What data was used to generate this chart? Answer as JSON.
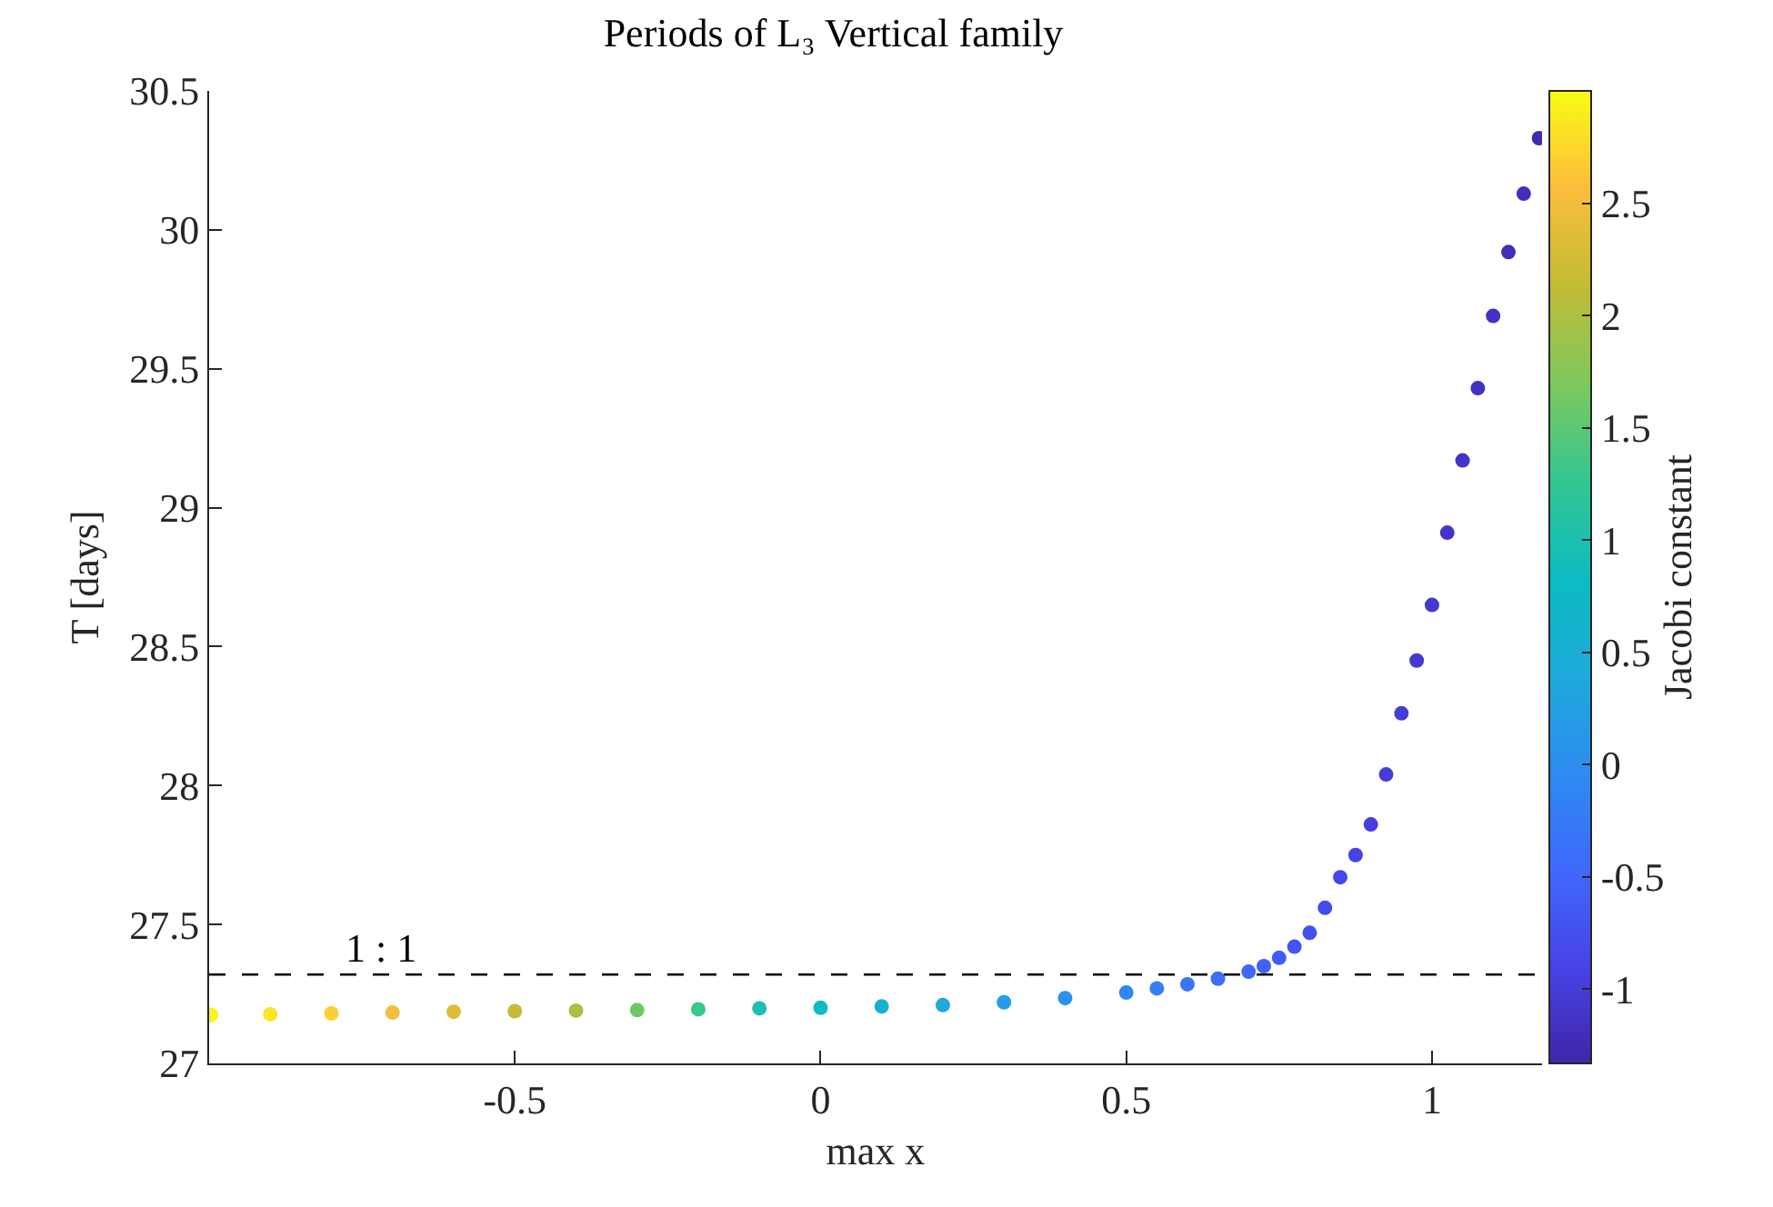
{
  "chart_data": {
    "type": "scatter",
    "title": "Periods of L₃ Vertical family",
    "xlabel": "max x",
    "ylabel": "T [days]",
    "clabel": "Jacobi constant",
    "x": [
      -0.997,
      -0.9,
      -0.8,
      -0.7,
      -0.6,
      -0.5,
      -0.4,
      -0.3,
      -0.2,
      -0.1,
      0,
      0.1,
      0.2,
      0.3,
      0.4,
      0.5,
      0.55,
      0.6,
      0.65,
      0.7,
      0.725,
      0.75,
      0.775,
      0.8,
      0.825,
      0.85,
      0.875,
      0.9,
      0.925,
      0.95,
      0.975,
      1.0,
      1.025,
      1.05,
      1.075,
      1.1,
      1.125,
      1.15,
      1.175
    ],
    "values": [
      27.175,
      27.177,
      27.18,
      27.183,
      27.186,
      27.188,
      27.19,
      27.192,
      27.195,
      27.198,
      27.2,
      27.205,
      27.21,
      27.22,
      27.235,
      27.255,
      27.27,
      27.285,
      27.305,
      27.33,
      27.35,
      27.38,
      27.42,
      27.47,
      27.56,
      27.67,
      27.75,
      27.86,
      28.04,
      28.26,
      28.45,
      28.65,
      28.91,
      29.17,
      29.43,
      29.69,
      29.92,
      30.13,
      30.33
    ],
    "cvalues": [
      2.95,
      2.85,
      2.7,
      2.5,
      2.35,
      2.15,
      1.95,
      1.6,
      1.3,
      1.0,
      0.8,
      0.55,
      0.4,
      0.2,
      0.05,
      -0.1,
      -0.2,
      -0.3,
      -0.4,
      -0.5,
      -0.55,
      -0.6,
      -0.7,
      -0.75,
      -0.8,
      -0.85,
      -0.9,
      -0.95,
      -1.0,
      -1.0,
      -1.05,
      -1.05,
      -1.1,
      -1.1,
      -1.15,
      -1.15,
      -1.2,
      -1.2,
      -1.25
    ],
    "marker": "circle",
    "xlim": [
      -1,
      1.18
    ],
    "xticks": [
      -0.5,
      0,
      0.5,
      1
    ],
    "ylim": [
      27,
      30.5
    ],
    "yticks": [
      27,
      27.5,
      28,
      28.5,
      29,
      29.5,
      30,
      30.5
    ],
    "clim": [
      -1.33,
      3.0
    ],
    "cticks": [
      -1,
      -0.5,
      0,
      0.5,
      1,
      1.5,
      2,
      2.5
    ],
    "ref_lines": [
      {
        "axis": "y",
        "value": 27.32,
        "color": "#000000",
        "line_style": "dashed"
      }
    ],
    "annotations": [
      {
        "text": "1 : 1",
        "x": -0.72,
        "y": 27.32
      }
    ],
    "grid": false
  }
}
